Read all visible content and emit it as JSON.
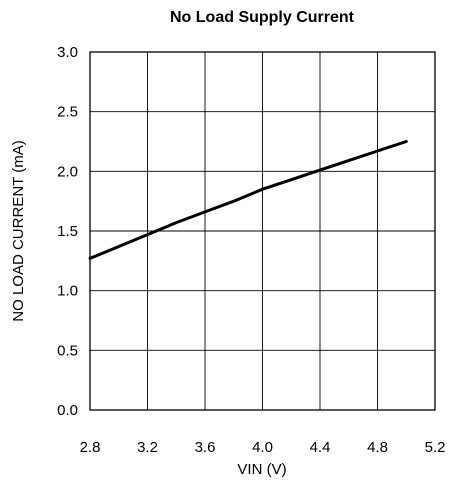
{
  "chart_data": {
    "type": "line",
    "title": "No Load Supply Current",
    "xlabel": "VIN (V)",
    "ylabel": "NO LOAD CURRENT (mA)",
    "xlim": [
      2.8,
      5.2
    ],
    "ylim": [
      0.0,
      3.0
    ],
    "x_ticks": [
      "2.8",
      "3.2",
      "3.6",
      "4.0",
      "4.4",
      "4.8",
      "5.2"
    ],
    "y_ticks": [
      "0.0",
      "0.5",
      "1.0",
      "1.5",
      "2.0",
      "2.5",
      "3.0"
    ],
    "grid": true,
    "series": [
      {
        "x": [
          2.8,
          3.0,
          3.2,
          3.4,
          3.6,
          3.8,
          4.0,
          4.2,
          4.4,
          4.6,
          4.8,
          5.0
        ],
        "y": [
          1.27,
          1.37,
          1.47,
          1.57,
          1.66,
          1.75,
          1.85,
          1.93,
          2.01,
          2.09,
          2.17,
          2.25
        ],
        "color": "#000000"
      }
    ]
  }
}
